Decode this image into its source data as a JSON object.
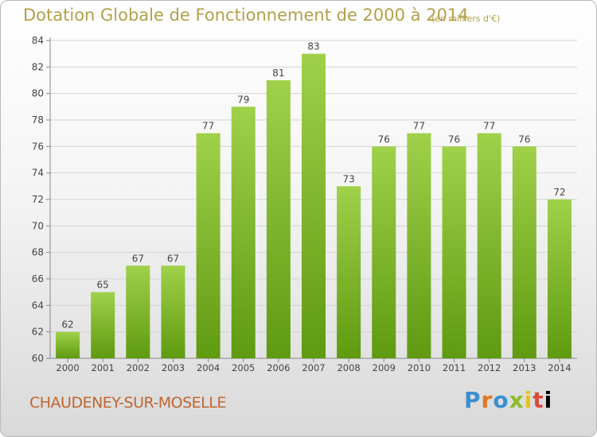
{
  "title": "Dotation Globale de Fonctionnement de 2000 à 2014",
  "unit": "(en milliers d'€)",
  "commune": "CHAUDENEY-SUR-MOSELLE",
  "logo": "Proxiti",
  "colors": {
    "bar_top": "#9fd14a",
    "bar_bottom": "#5f9a10",
    "title": "#b2a04a",
    "commune": "#c0662f",
    "grid": "#d4d4d4"
  },
  "chart_data": {
    "type": "bar",
    "title": "Dotation Globale de Fonctionnement de 2000 à 2014",
    "subtitle": "(en milliers d'€)",
    "xlabel": "",
    "ylabel": "",
    "categories": [
      "2000",
      "2001",
      "2002",
      "2003",
      "2004",
      "2005",
      "2006",
      "2007",
      "2008",
      "2009",
      "2010",
      "2011",
      "2012",
      "2013",
      "2014"
    ],
    "values": [
      62,
      65,
      67,
      67,
      77,
      79,
      81,
      83,
      73,
      76,
      77,
      76,
      77,
      76,
      72
    ],
    "ylim": [
      60,
      84
    ],
    "yticks": [
      60,
      62,
      64,
      66,
      68,
      70,
      72,
      74,
      76,
      78,
      80,
      82,
      84
    ],
    "grid": true,
    "data_labels": true
  }
}
